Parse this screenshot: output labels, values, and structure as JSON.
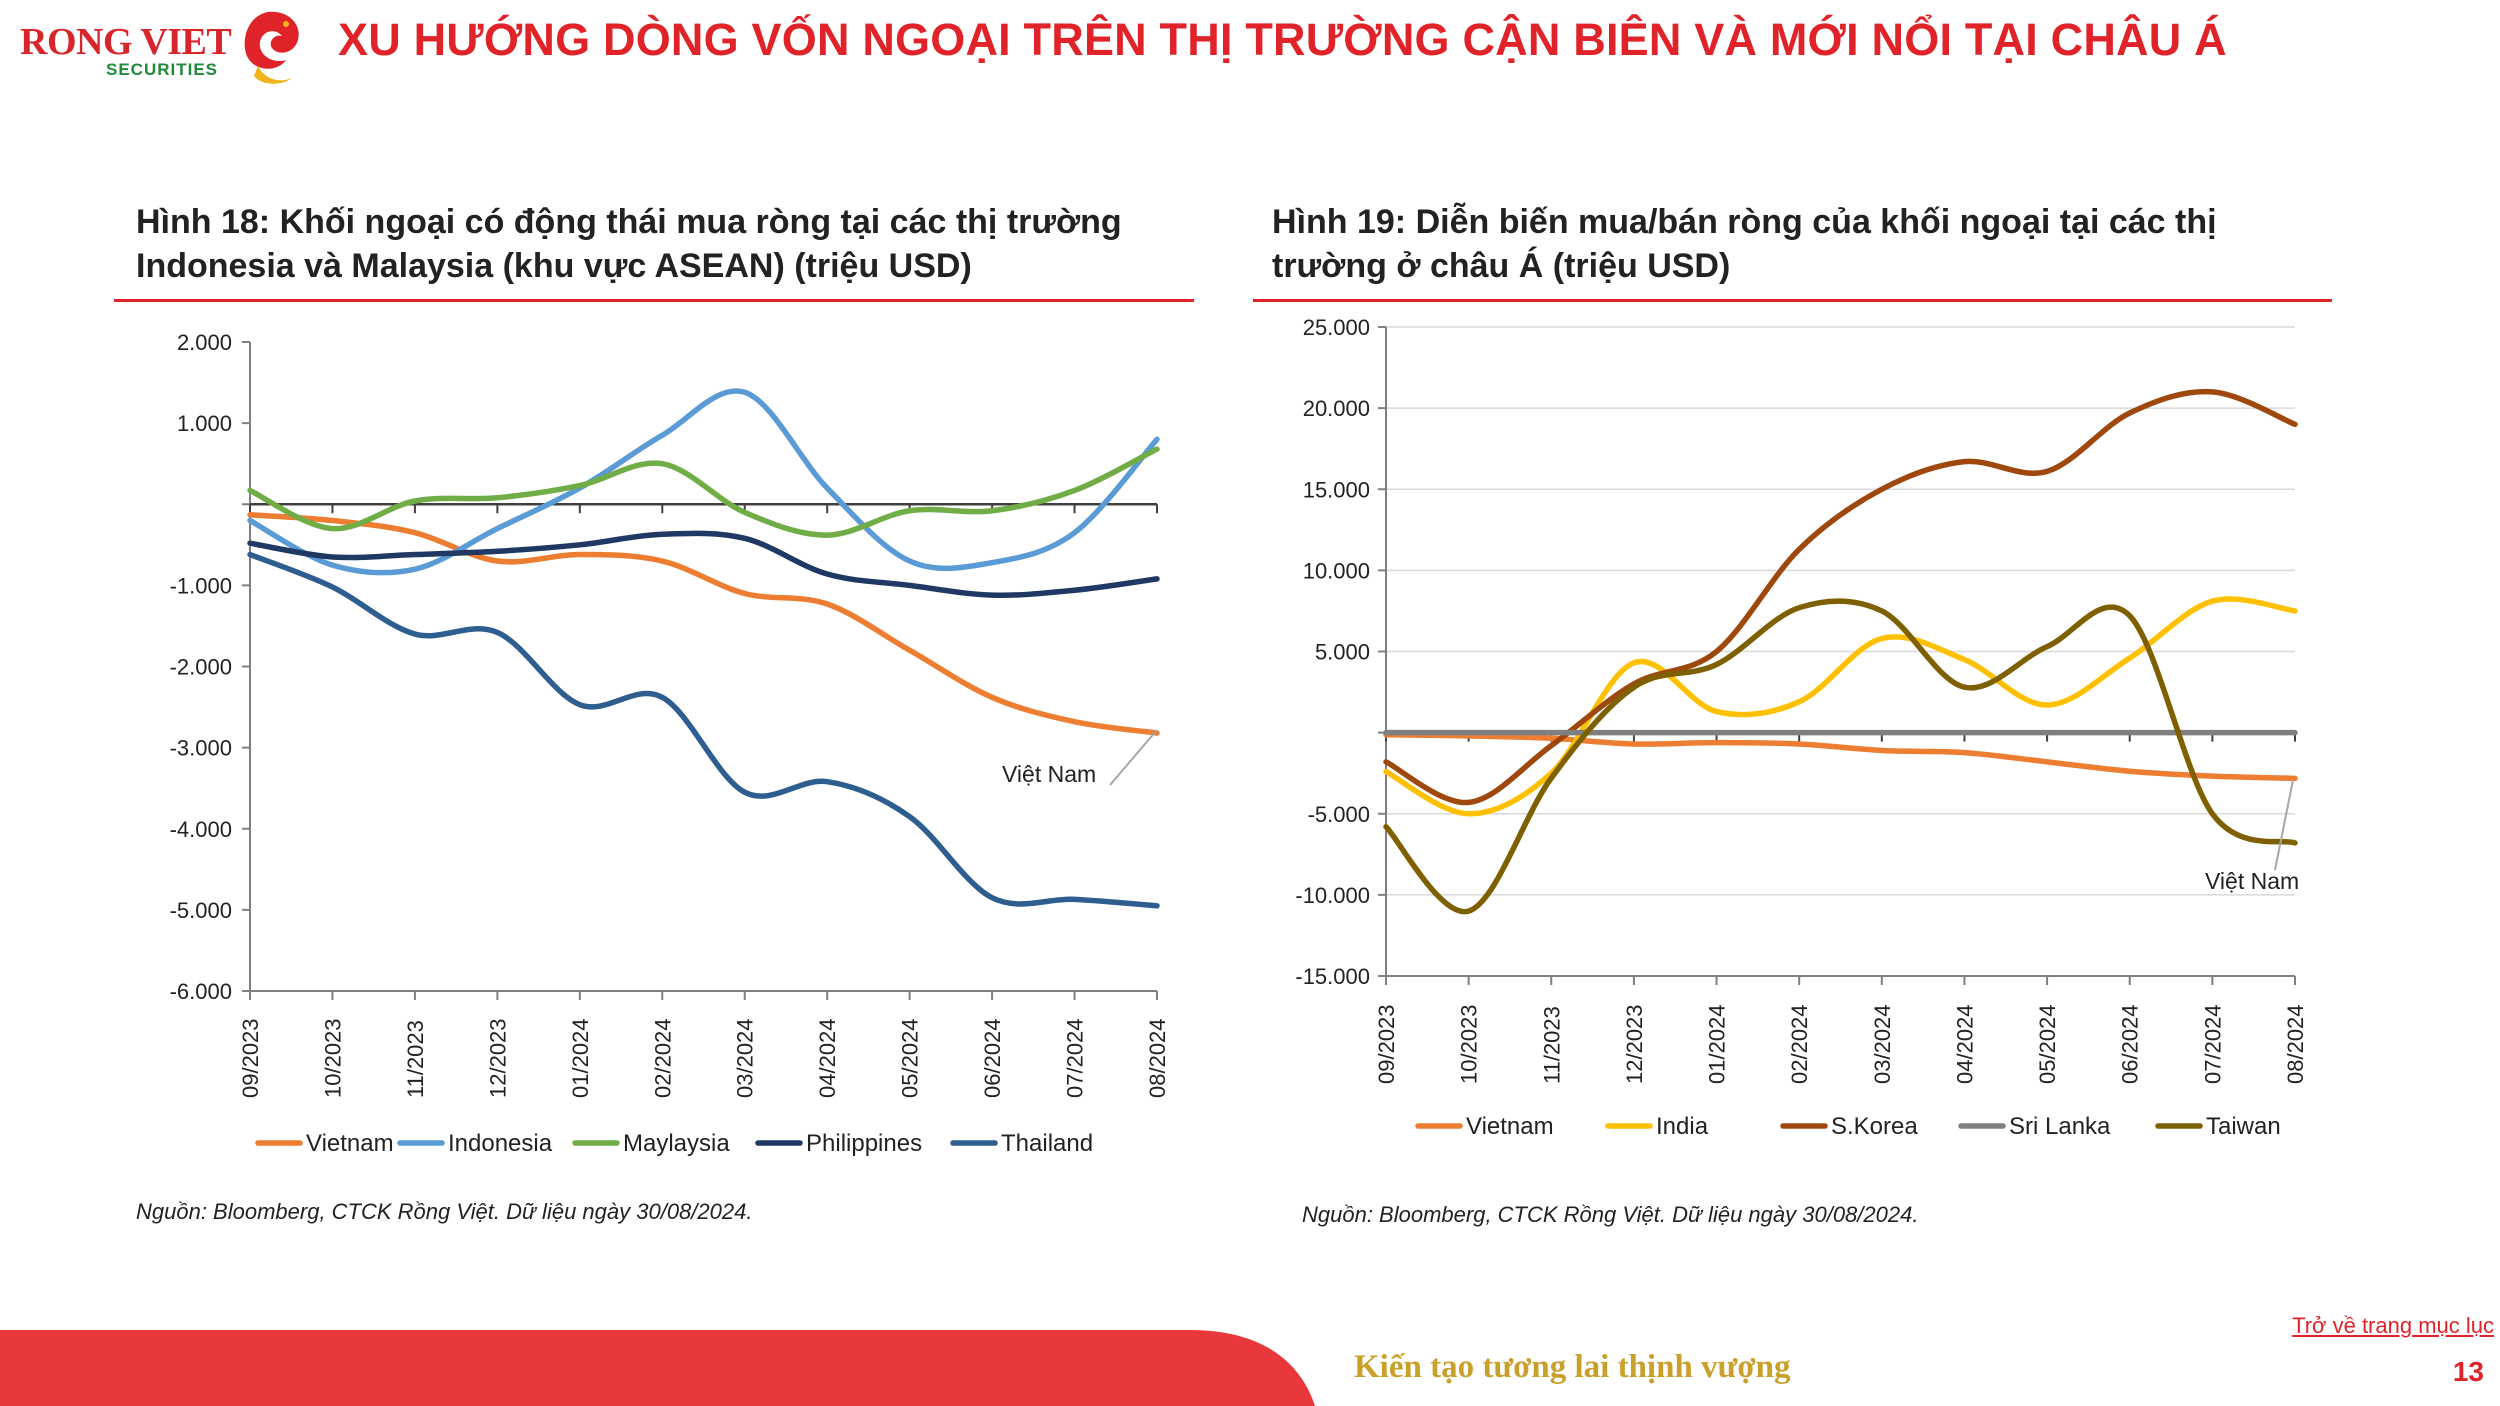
{
  "header": {
    "logo_text": "RONG VIET",
    "logo_sub": "SECURITIES",
    "title": "XU HƯỚNG DÒNG VỐN NGOẠI TRÊN THỊ TRƯỜNG CẬN BIÊN VÀ MỚI NỔI TẠI CHÂU Á"
  },
  "figures": {
    "left": {
      "title": "Hình 18:  Khối ngoại có động thái mua ròng tại các thị trường Indonesia và Malaysia (khu vực ASEAN) (triệu USD)",
      "source": "Nguồn: Bloomberg, CTCK Rồng Việt. Dữ liệu ngày 30/08/2024."
    },
    "right": {
      "title": "Hình 19: Diễn biến mua/bán ròng của khối ngoại tại các thị trường ở châu Á (triệu USD)",
      "source": "Nguồn: Bloomberg, CTCK Rồng Việt. Dữ liệu ngày 30/08/2024."
    }
  },
  "footer": {
    "slogan": "Kiến tạo tương lai thịnh vượng",
    "back_link": "Trở về trang mục lục",
    "page_number": "13"
  },
  "colors": {
    "brand_red": "#e02329",
    "slogan_gold": "#c9a12a",
    "footer_red": "#e8383b"
  },
  "chart_data": [
    {
      "type": "line",
      "title": "Hình 18:  Khối ngoại có động thái mua ròng tại các thị trường Indonesia và Malaysia (khu vực ASEAN) (triệu USD)",
      "x": [
        "09/2023",
        "10/2023",
        "11/2023",
        "12/2023",
        "01/2024",
        "02/2024",
        "03/2024",
        "04/2024",
        "05/2024",
        "06/2024",
        "07/2024",
        "08/2024"
      ],
      "ylim": [
        -6000,
        2000
      ],
      "yticks": [
        2000,
        1000,
        0,
        -1000,
        -2000,
        -3000,
        -4000,
        -5000,
        -6000
      ],
      "ytick_labels": [
        "2.000",
        "1.000",
        "",
        "-1.000",
        "-2.000",
        "-3.000",
        "-4.000",
        "-5.000",
        "-6.000"
      ],
      "grid": false,
      "legend_position": "bottom",
      "series": [
        {
          "name": "Vietnam",
          "color": "#ed7d31",
          "values": [
            -130,
            -200,
            -350,
            -700,
            -620,
            -700,
            -1100,
            -1230,
            -1800,
            -2380,
            -2680,
            -2820
          ]
        },
        {
          "name": "Indonesia",
          "color": "#5b9bd5",
          "values": [
            -200,
            -750,
            -800,
            -300,
            200,
            850,
            1380,
            200,
            -700,
            -720,
            -350,
            800
          ]
        },
        {
          "name": "Maylaysia",
          "color": "#70ad47",
          "values": [
            170,
            -300,
            40,
            80,
            230,
            500,
            -100,
            -380,
            -80,
            -80,
            170,
            680
          ]
        },
        {
          "name": "Philippines",
          "color": "#203864",
          "values": [
            -480,
            -650,
            -620,
            -580,
            -500,
            -370,
            -420,
            -860,
            -1000,
            -1120,
            -1060,
            -920
          ]
        },
        {
          "name": "Thailand",
          "color": "#2e5d8f",
          "values": [
            -620,
            -1020,
            -1600,
            -1580,
            -2470,
            -2380,
            -3550,
            -3420,
            -3850,
            -4850,
            -4870,
            -4950
          ]
        }
      ],
      "annotations": [
        {
          "text": "Việt Nam",
          "series": "Vietnam",
          "x": "08/2024"
        }
      ]
    },
    {
      "type": "line",
      "title": "Hình 19: Diễn biến mua/bán ròng của khối ngoại tại các thị trường ở châu Á (triệu USD)",
      "x": [
        "09/2023",
        "10/2023",
        "11/2023",
        "12/2023",
        "01/2024",
        "02/2024",
        "03/2024",
        "04/2024",
        "05/2024",
        "06/2024",
        "07/2024",
        "08/2024"
      ],
      "ylim": [
        -15000,
        25000
      ],
      "yticks": [
        25000,
        20000,
        15000,
        10000,
        5000,
        0,
        -5000,
        -10000,
        -15000
      ],
      "ytick_labels": [
        "25.000",
        "20.000",
        "15.000",
        "10.000",
        "5.000",
        "",
        "-5.000",
        "-10.000",
        "-15.000"
      ],
      "grid": true,
      "legend_position": "bottom",
      "series": [
        {
          "name": "Vietnam",
          "color": "#ed7d31",
          "values": [
            -130,
            -200,
            -350,
            -700,
            -620,
            -700,
            -1100,
            -1230,
            -1800,
            -2380,
            -2680,
            -2820
          ]
        },
        {
          "name": "India",
          "color": "#ffc000",
          "values": [
            -2400,
            -5000,
            -2500,
            4300,
            1300,
            1900,
            5800,
            4500,
            1700,
            4600,
            8100,
            7500
          ]
        },
        {
          "name": "S.Korea",
          "color": "#9e480e",
          "values": [
            -1800,
            -4300,
            -800,
            3000,
            5000,
            11300,
            15000,
            16700,
            16100,
            19700,
            21000,
            19000
          ]
        },
        {
          "name": "Sri Lanka",
          "color": "#7f7f7f",
          "values": [
            0,
            0,
            0,
            0,
            0,
            0,
            0,
            0,
            0,
            0,
            0,
            0
          ]
        },
        {
          "name": "Taiwan",
          "color": "#7f6000",
          "values": [
            -5800,
            -11000,
            -2800,
            2800,
            4200,
            7700,
            7500,
            2800,
            5300,
            7200,
            -5000,
            -6800
          ]
        }
      ],
      "annotations": [
        {
          "text": "Việt Nam",
          "series": "Vietnam",
          "x": "08/2024"
        }
      ]
    }
  ]
}
